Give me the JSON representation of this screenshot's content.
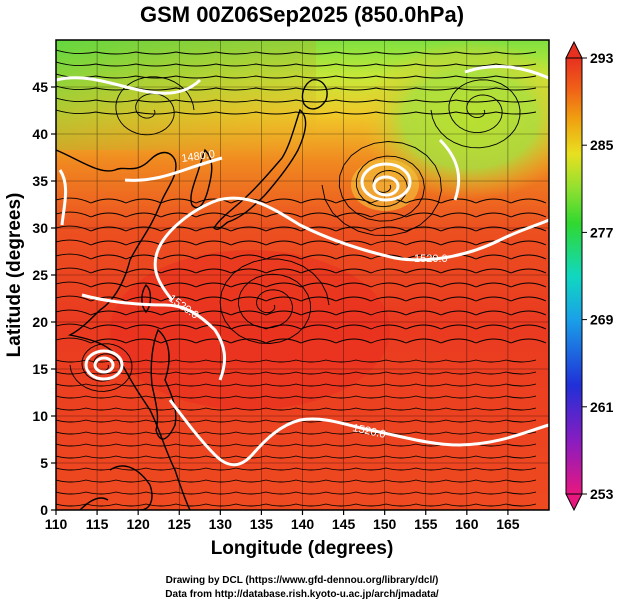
{
  "title": "GSM 00Z06Sep2025 (850.0hPa)",
  "xaxis": {
    "label": "Longitude (degrees)",
    "ticks": [
      "110",
      "115",
      "120",
      "125",
      "130",
      "135",
      "140",
      "145",
      "150",
      "155",
      "160",
      "165"
    ],
    "range": [
      110,
      170
    ]
  },
  "yaxis": {
    "label": "Latitude  (degrees)",
    "ticks": [
      "0",
      "5",
      "10",
      "15",
      "20",
      "25",
      "30",
      "35",
      "40",
      "45"
    ],
    "range": [
      0,
      50
    ]
  },
  "colorbar": {
    "ticks": [
      "293",
      "285",
      "277",
      "269",
      "261",
      "253"
    ],
    "range": [
      253,
      293
    ],
    "colors": [
      "#e8177f",
      "#5a2cc0",
      "#2030d8",
      "#1aa0e8",
      "#10d8c0",
      "#30d830",
      "#90e030",
      "#e8e020",
      "#f0a010",
      "#f06018",
      "#e83020"
    ]
  },
  "contours": {
    "labels": [
      "1480.0",
      "1520.0",
      "1520.0",
      "1520.0"
    ]
  },
  "credits": {
    "line1": "Drawing by DCL (https://www.gfd-dennou.org/library/dcl/)",
    "line2": "Data from http://database.rish.kyoto-u.ac.jp/arch/jmadata/"
  }
}
